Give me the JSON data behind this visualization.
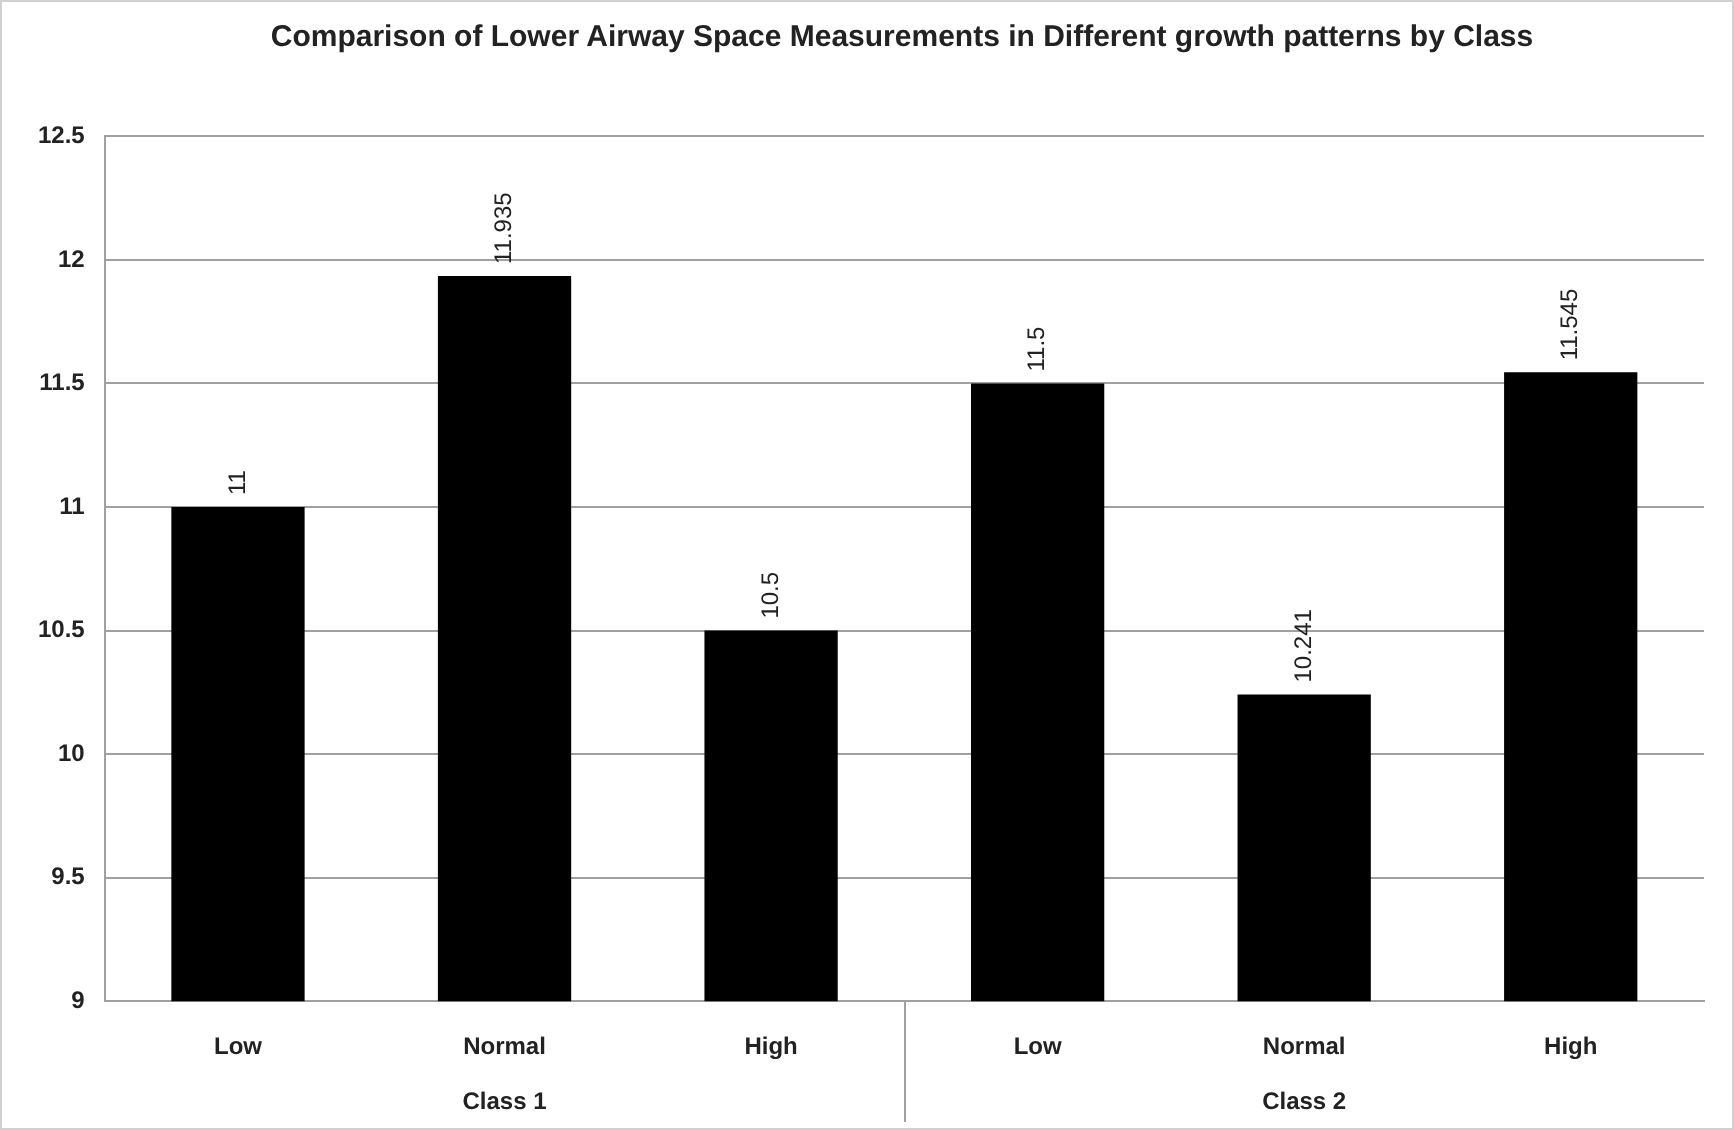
{
  "chart_data": {
    "type": "bar",
    "title": "Comparison of Lower Airway Space Measurements in Different growth patterns by Class",
    "categories": [
      "Low",
      "Normal",
      "High",
      "Low",
      "Normal",
      "High"
    ],
    "values": [
      11,
      11.935,
      10.5,
      11.5,
      10.241,
      11.545
    ],
    "color": "#000000",
    "ylim": [
      9,
      12.5
    ],
    "yticks": [
      9,
      9.5,
      10,
      10.5,
      11,
      11.5,
      12,
      12.5
    ],
    "grid": "y",
    "data_labels": true,
    "legend": false,
    "annotations": [
      "Class 1",
      "Class 2"
    ]
  }
}
